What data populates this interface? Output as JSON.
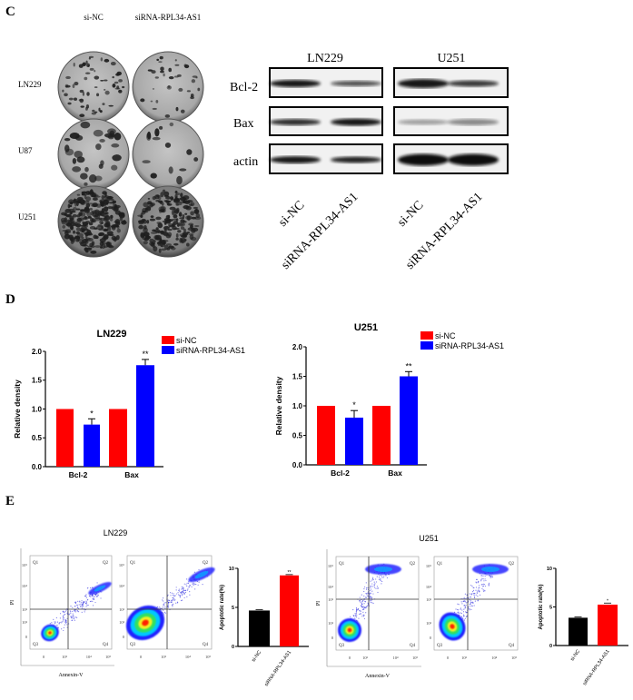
{
  "panels": {
    "c": "C",
    "d": "D",
    "e": "E"
  },
  "colony": {
    "columns": [
      "si-NC",
      "siRNA-RPL34-AS1"
    ],
    "rows": [
      "LN229",
      "U87",
      "U251"
    ]
  },
  "western": {
    "cells": [
      "LN229",
      "U251"
    ],
    "proteins": [
      "Bcl-2",
      "Bax",
      "actin"
    ],
    "lanes": [
      "si-NC",
      "siRNA-RPL34-AS1",
      "si-NC",
      "siRNA-RPL34-AS1"
    ]
  },
  "flow": {
    "cells": [
      "LN229",
      "U251"
    ],
    "quadrants": [
      "Q1",
      "Q2",
      "Q3",
      "Q4"
    ],
    "xlabel": "Annexin-V",
    "ylabel": "PI",
    "xticks": [
      "0",
      "10³",
      "10⁴",
      "10⁵"
    ],
    "yticks": [
      "0",
      "10²",
      "10³",
      "10⁴",
      "10⁵"
    ]
  },
  "chart_data": [
    {
      "type": "bar",
      "title": "LN229",
      "xlabel": "",
      "ylabel": "Relative density",
      "categories": [
        "Bcl-2",
        "Bax"
      ],
      "ylim": [
        0,
        2
      ],
      "yticks": [
        "0.0",
        "0.5",
        "1.0",
        "1.5",
        "2.0"
      ],
      "legend": "top-right",
      "grid": false,
      "series": [
        {
          "name": "si-NC",
          "color": "#ff0000",
          "values": [
            1.0,
            1.0
          ],
          "errors": [
            0,
            0
          ],
          "significance": [
            "",
            ""
          ]
        },
        {
          "name": "siRNA-RPL34-AS1",
          "color": "#0000ff",
          "values": [
            0.73,
            1.76
          ],
          "errors": [
            0.1,
            0.1
          ],
          "significance": [
            "*",
            "**"
          ]
        }
      ]
    },
    {
      "type": "bar",
      "title": "U251",
      "xlabel": "",
      "ylabel": "Relative density",
      "categories": [
        "Bcl-2",
        "Bax"
      ],
      "ylim": [
        0,
        2
      ],
      "yticks": [
        "0.0",
        "0.5",
        "1.0",
        "1.5",
        "2.0"
      ],
      "legend": "top-right",
      "grid": false,
      "series": [
        {
          "name": "si-NC",
          "color": "#ff0000",
          "values": [
            1.0,
            1.0
          ],
          "errors": [
            0,
            0
          ],
          "significance": [
            "",
            ""
          ]
        },
        {
          "name": "siRNA-RPL34-AS1",
          "color": "#0000ff",
          "values": [
            0.8,
            1.5
          ],
          "errors": [
            0.12,
            0.08
          ],
          "significance": [
            "*",
            "**"
          ]
        }
      ]
    },
    {
      "type": "bar",
      "title": "",
      "xlabel": "",
      "ylabel": "Apoptotic rate(%)",
      "categories": [
        "si-NC",
        "siRNA-RPL34-AS1"
      ],
      "ylim": [
        0,
        10
      ],
      "yticks": [
        "0",
        "5",
        "10"
      ],
      "legend": "none",
      "grid": false,
      "series": [
        {
          "name": "LN229",
          "colors": [
            "#000000",
            "#ff0000"
          ],
          "values": [
            4.6,
            9.1
          ],
          "errors": [
            0.1,
            0.1
          ],
          "significance": [
            "",
            "**"
          ]
        }
      ]
    },
    {
      "type": "bar",
      "title": "",
      "xlabel": "",
      "ylabel": "Apoptotic rate(%)",
      "categories": [
        "si-NC",
        "siRNA-RPL34-AS1"
      ],
      "ylim": [
        0,
        10
      ],
      "yticks": [
        "0",
        "5",
        "10"
      ],
      "legend": "none",
      "grid": false,
      "series": [
        {
          "name": "U251",
          "colors": [
            "#000000",
            "#ff0000"
          ],
          "values": [
            3.6,
            5.3
          ],
          "errors": [
            0.1,
            0.2
          ],
          "significance": [
            "",
            "*"
          ]
        }
      ]
    }
  ]
}
